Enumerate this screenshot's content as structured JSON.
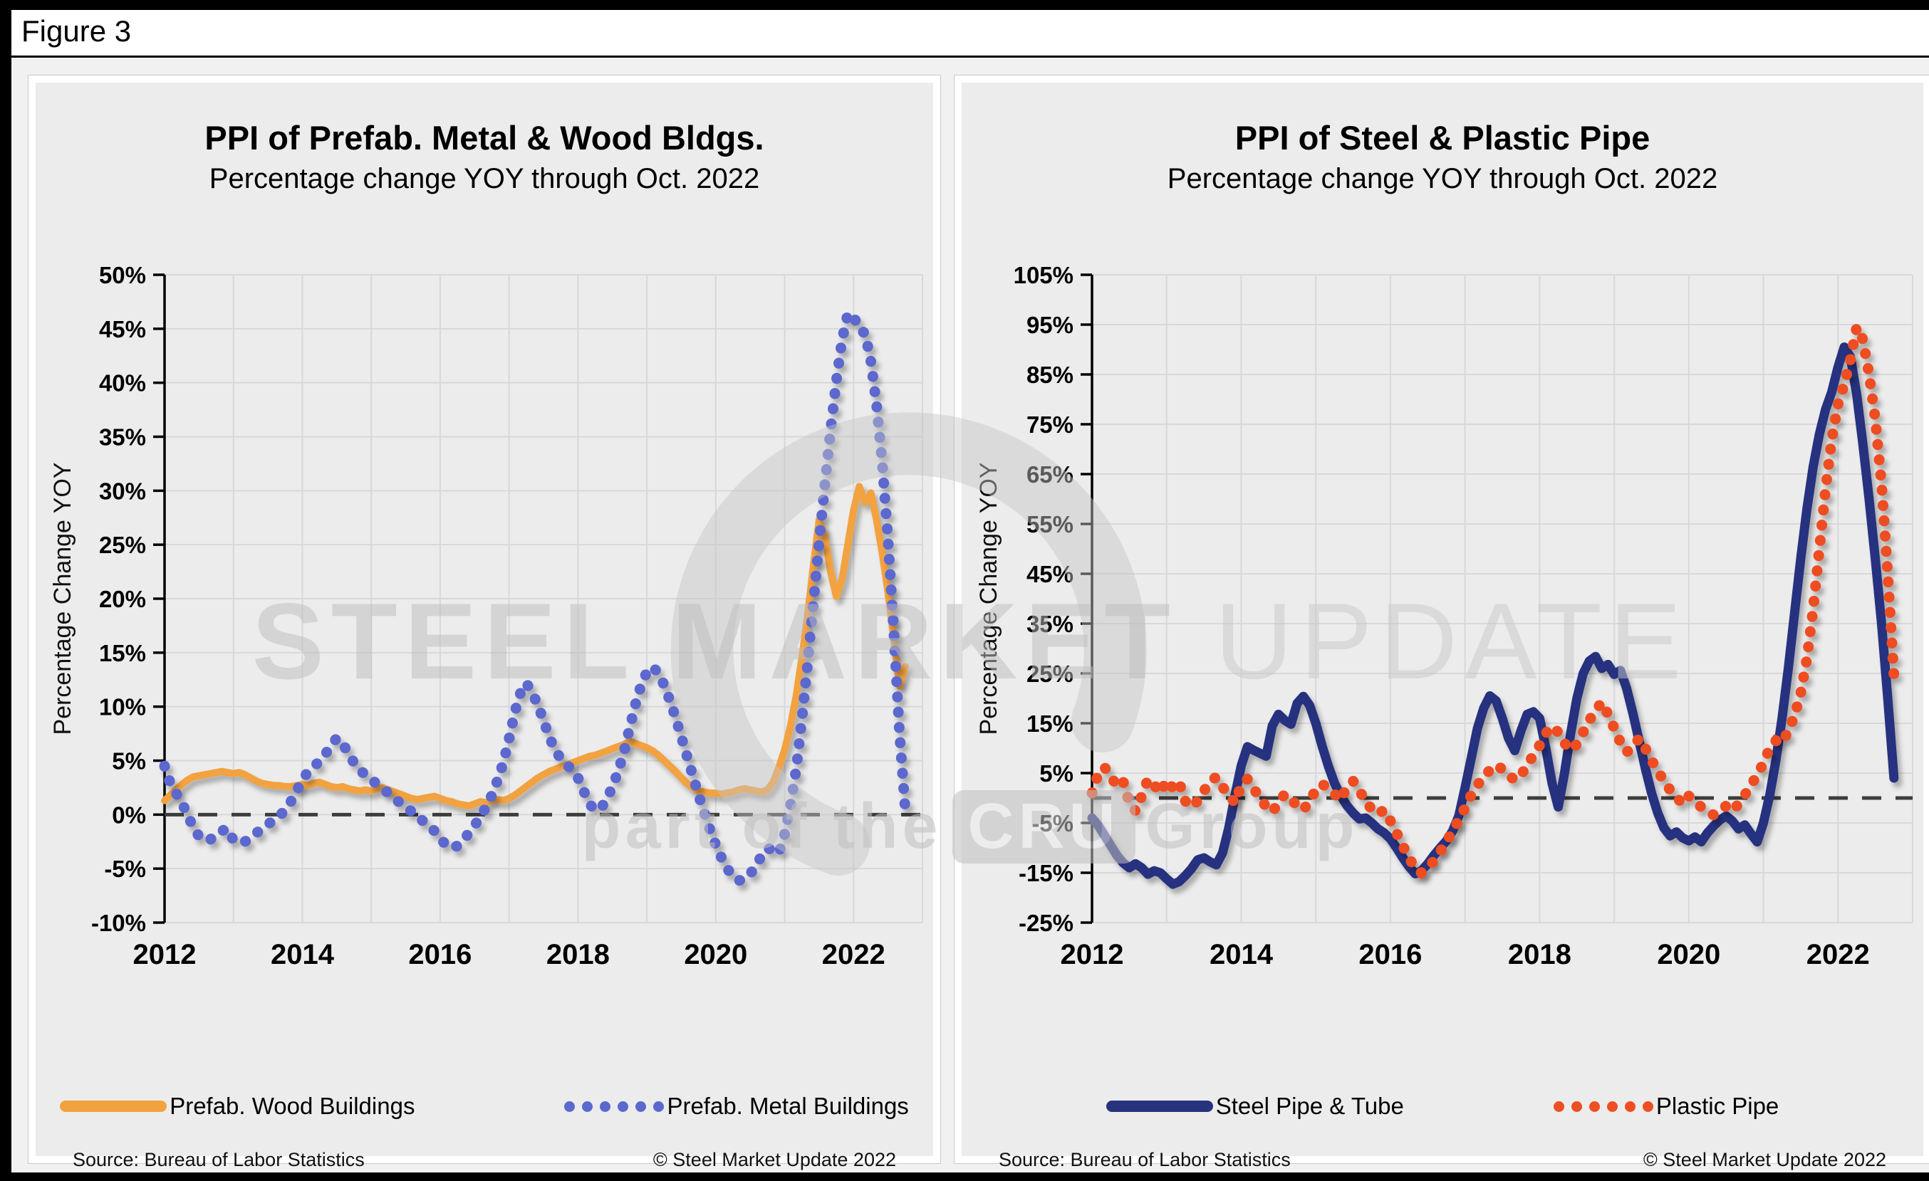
{
  "figure_label": "Figure 3",
  "watermark": {
    "line1_left": "STEEL MARKET",
    "line1_right": "UPDATE",
    "line2_prefix": "part of the",
    "line2_box": "CRU",
    "line2_suffix": "Group"
  },
  "colors": {
    "wood_orange": "#F2A23F",
    "metal_blue": "#5B68CE",
    "steel_navy": "#27337F",
    "plastic_red": "#EE4E23",
    "zero_line": "#3D3D3D",
    "grid": "#D8D8D8",
    "axis": "#000000",
    "panel_bg": "#ECECEC",
    "page_bg": "#F1F1F1",
    "watermark_gray": "#C4C4C4"
  },
  "chart_data": [
    {
      "type": "line",
      "title": "PPI of Prefab. Metal & Wood Bldgs.",
      "subtitle": "Percentage change YOY through Oct. 2022",
      "ylabel": "Percentage Change YOY",
      "source": "Source: Bureau of Labor Statistics",
      "copyright": "© Steel Market Update 2022",
      "x_start": "2012-01",
      "x_end": "2022-10",
      "ylim": [
        -10,
        50
      ],
      "grid": true,
      "legend_position": "bottom",
      "ytick_values": [
        50,
        45,
        40,
        35,
        30,
        25,
        20,
        15,
        10,
        5,
        0,
        -5,
        -10
      ],
      "ytick_labels": [
        "50%",
        "45%",
        "40%",
        "35%",
        "30%",
        "25%",
        "20%",
        "15%",
        "10%",
        "5%",
        "0%",
        "-5%",
        "-10%"
      ],
      "xtick_values": [
        2012,
        2014,
        2016,
        2018,
        2020,
        2022
      ],
      "xtick_labels": [
        "2012",
        "2014",
        "2016",
        "2018",
        "2020",
        "2022"
      ],
      "zero_line": true,
      "series": [
        {
          "name": "Prefab. Wood Buildings",
          "color": "wood_orange",
          "style": "line",
          "values": [
            1.3,
            1.8,
            2.3,
            2.8,
            3.2,
            3.5,
            3.6,
            3.7,
            3.8,
            3.9,
            4.0,
            3.9,
            3.8,
            3.9,
            3.7,
            3.4,
            3.1,
            2.9,
            2.8,
            2.7,
            2.7,
            2.6,
            2.6,
            2.7,
            2.8,
            2.7,
            2.9,
            3.0,
            2.8,
            2.6,
            2.5,
            2.6,
            2.4,
            2.3,
            2.2,
            2.3,
            2.2,
            2.4,
            2.5,
            2.3,
            2.1,
            1.9,
            1.7,
            1.5,
            1.4,
            1.5,
            1.6,
            1.7,
            1.5,
            1.3,
            1.2,
            1.0,
            0.9,
            0.8,
            1.0,
            1.2,
            1.1,
            1.3,
            1.4,
            1.3,
            1.5,
            1.8,
            2.2,
            2.6,
            3.0,
            3.4,
            3.7,
            4.0,
            4.2,
            4.4,
            4.6,
            4.8,
            5.0,
            5.2,
            5.4,
            5.5,
            5.7,
            5.9,
            6.1,
            6.3,
            6.5,
            6.8,
            6.6,
            6.4,
            6.2,
            5.9,
            5.5,
            5.0,
            4.5,
            4.0,
            3.4,
            2.9,
            2.5,
            2.2,
            2.1,
            2.0,
            2.0,
            1.9,
            2.0,
            2.1,
            2.3,
            2.4,
            2.3,
            2.2,
            2.1,
            2.3,
            3.0,
            4.4,
            6.0,
            8.2,
            11.0,
            14.5,
            18.5,
            23.0,
            27.3,
            25.8,
            22.5,
            20.2,
            21.8,
            25.0,
            28.2,
            30.4,
            28.9,
            29.8,
            27.3,
            24.2,
            20.6,
            16.4,
            11.9,
            13.7
          ]
        },
        {
          "name": "Prefab. Metal Buildings",
          "color": "metal_blue",
          "style": "dots",
          "values": [
            4.5,
            2.9,
            2.0,
            1.1,
            0.0,
            -1.2,
            -2.0,
            -2.4,
            -2.3,
            -1.8,
            -1.5,
            -1.3,
            -2.4,
            -2.6,
            -2.5,
            -2.1,
            -1.7,
            -1.3,
            -0.9,
            -0.5,
            -0.1,
            0.4,
            1.2,
            2.2,
            3.2,
            4.0,
            4.5,
            4.9,
            5.6,
            6.4,
            7.1,
            6.6,
            5.7,
            4.8,
            4.1,
            3.7,
            3.3,
            2.8,
            2.4,
            2.0,
            1.5,
            1.1,
            0.7,
            0.3,
            -0.1,
            -0.6,
            -1.1,
            -1.5,
            -2.2,
            -2.8,
            -3.1,
            -2.9,
            -2.4,
            -1.7,
            -1.0,
            -0.2,
            0.7,
            1.8,
            3.2,
            4.8,
            7.0,
            9.5,
            11.3,
            12.2,
            11.3,
            10.2,
            8.7,
            7.2,
            6.0,
            5.2,
            4.6,
            4.2,
            3.4,
            2.2,
            1.0,
            0.4,
            0.6,
            1.4,
            2.6,
            4.0,
            5.8,
            8.0,
            10.2,
            12.0,
            13.2,
            13.7,
            13.1,
            12.0,
            10.6,
            9.0,
            7.2,
            5.4,
            3.6,
            1.8,
            0.2,
            -1.4,
            -2.8,
            -4.0,
            -5.0,
            -5.7,
            -6.1,
            -6.0,
            -5.5,
            -4.7,
            -3.8,
            -3.1,
            -3.3,
            -3.6,
            -1.8,
            0.8,
            4.2,
            8.8,
            14.0,
            19.6,
            25.2,
            30.6,
            35.6,
            40.2,
            44.0,
            46.4,
            46.2,
            44.9,
            44.6,
            42.0,
            38.0,
            32.5,
            25.5,
            17.0,
            7.5,
            0.5
          ]
        }
      ]
    },
    {
      "type": "line",
      "title": "PPI of Steel & Plastic Pipe",
      "subtitle": "Percentage change YOY through Oct. 2022",
      "ylabel": "Percentage Change YOY",
      "source": "Source: Bureau of Labor Statistics",
      "copyright": "© Steel Market Update 2022",
      "x_start": "2012-01",
      "x_end": "2022-10",
      "ylim": [
        -25,
        105
      ],
      "grid": true,
      "legend_position": "bottom",
      "ytick_values": [
        105,
        95,
        85,
        75,
        65,
        55,
        45,
        35,
        25,
        15,
        5,
        -5,
        -15,
        -25
      ],
      "ytick_labels": [
        "105%",
        "95%",
        "85%",
        "75%",
        "65%",
        "55%",
        "45%",
        "35%",
        "25%",
        "15%",
        "5%",
        "-5%",
        "-15%",
        "-25%"
      ],
      "xtick_values": [
        2012,
        2014,
        2016,
        2018,
        2020,
        2022
      ],
      "xtick_labels": [
        "2012",
        "2014",
        "2016",
        "2018",
        "2020",
        "2022"
      ],
      "zero_line": true,
      "series": [
        {
          "name": "Steel Pipe & Tube",
          "color": "steel_navy",
          "style": "line",
          "values": [
            -4.0,
            -5.5,
            -7.5,
            -9.5,
            -11.5,
            -13.0,
            -14.0,
            -13.2,
            -14.0,
            -15.3,
            -14.6,
            -15.0,
            -16.2,
            -17.3,
            -16.8,
            -15.6,
            -14.2,
            -12.4,
            -12.0,
            -12.8,
            -13.4,
            -11.0,
            -6.0,
            0.5,
            6.5,
            10.3,
            9.6,
            9.0,
            8.4,
            14.5,
            16.8,
            15.6,
            14.8,
            19.0,
            20.4,
            18.6,
            15.0,
            10.5,
            6.5,
            3.0,
            0.5,
            -1.5,
            -3.0,
            -4.2,
            -4.0,
            -5.0,
            -6.2,
            -7.0,
            -8.2,
            -10.0,
            -12.0,
            -13.8,
            -15.2,
            -14.6,
            -13.2,
            -11.5,
            -10.0,
            -8.6,
            -6.6,
            -3.6,
            2.0,
            8.0,
            14.0,
            18.0,
            20.5,
            19.5,
            16.0,
            12.0,
            9.5,
            13.5,
            16.8,
            17.3,
            16.0,
            10.0,
            3.0,
            -1.8,
            5.0,
            13.0,
            20.0,
            25.0,
            27.5,
            28.4,
            26.0,
            26.8,
            24.8,
            25.6,
            22.0,
            17.0,
            11.5,
            6.0,
            1.0,
            -3.0,
            -6.0,
            -7.6,
            -6.8,
            -8.0,
            -8.6,
            -7.8,
            -8.8,
            -7.0,
            -5.6,
            -4.4,
            -3.6,
            -4.6,
            -6.2,
            -5.4,
            -7.2,
            -8.8,
            -5.0,
            0.5,
            7.5,
            16.0,
            26.0,
            37.0,
            48.0,
            58.0,
            66.5,
            73.0,
            78.0,
            81.5,
            86.5,
            90.5,
            88.5,
            81.0,
            71.0,
            60.0,
            48.0,
            35.0,
            20.0,
            4.0
          ]
        },
        {
          "name": "Plastic Pipe",
          "color": "plastic_red",
          "style": "dots",
          "values": [
            1.0,
            4.8,
            6.2,
            4.4,
            2.4,
            3.4,
            -1.0,
            -2.6,
            0.4,
            3.8,
            2.6,
            1.0,
            3.6,
            2.0,
            3.2,
            -0.6,
            -1.8,
            -0.6,
            1.4,
            3.4,
            4.2,
            2.2,
            0.6,
            -1.0,
            2.6,
            3.8,
            1.8,
            0.2,
            -1.8,
            -2.8,
            -1.0,
            0.8,
            -0.2,
            -1.6,
            -2.4,
            -0.6,
            1.6,
            2.8,
            2.0,
            0.8,
            -0.4,
            2.2,
            3.4,
            1.6,
            -0.8,
            -2.2,
            -3.2,
            -2.4,
            -4.6,
            -7.0,
            -9.6,
            -12.0,
            -14.2,
            -15.0,
            -14.0,
            -12.6,
            -10.8,
            -8.8,
            -6.6,
            -4.4,
            -2.0,
            0.6,
            2.6,
            4.2,
            5.6,
            6.6,
            5.8,
            4.6,
            3.6,
            4.6,
            6.6,
            8.6,
            10.6,
            13.0,
            14.4,
            13.2,
            11.0,
            9.6,
            10.8,
            13.2,
            15.6,
            17.6,
            19.2,
            16.8,
            14.0,
            11.2,
            9.2,
            10.2,
            12.0,
            10.0,
            7.6,
            5.4,
            3.4,
            1.6,
            0.2,
            -1.2,
            0.4,
            -0.8,
            -1.8,
            -2.8,
            -3.4,
            -2.4,
            -1.6,
            -2.6,
            -1.2,
            0.6,
            2.6,
            4.6,
            7.0,
            10.0,
            11.5,
            11.0,
            13.5,
            16.5,
            21.0,
            28.0,
            38.0,
            50.0,
            62.0,
            72.0,
            79.0,
            83.0,
            88.0,
            94.5,
            92.0,
            85.0,
            76.0,
            63.0,
            45.0,
            24.5
          ]
        }
      ]
    }
  ]
}
